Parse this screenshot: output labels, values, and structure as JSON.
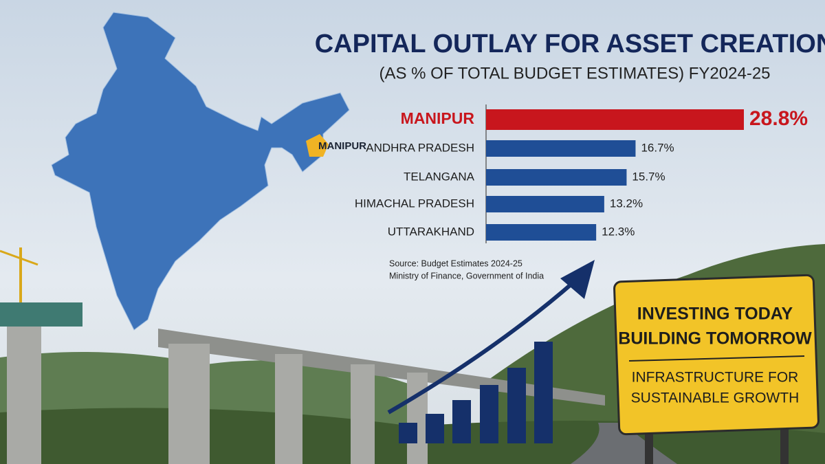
{
  "chart_data": {
    "type": "bar",
    "orientation": "horizontal",
    "title": "CAPITAL OUTLAY FOR ASSET CREATION",
    "subtitle": "(AS % OF TOTAL BUDGET ESTIMATES) FY2024-25",
    "categories": [
      "MANIPUR",
      "ANDHRA PRADESH",
      "TELANGANA",
      "HIMACHAL PRADESH",
      "UTTARAKHAND"
    ],
    "values": [
      28.8,
      16.7,
      15.7,
      13.2,
      12.3
    ],
    "value_labels": [
      "28.8%",
      "16.7%",
      "15.7%",
      "13.2%",
      "12.3%"
    ],
    "colors": [
      "#c8161d",
      "#1f4e96",
      "#1f4e96",
      "#1f4e96",
      "#1f4e96"
    ],
    "source": [
      "Source: Budget Estimates 2024-25",
      "Ministry of Finance, Government of India"
    ]
  },
  "map_label": "MANIPUR",
  "sign": {
    "headline": [
      "INVESTING TODAY",
      "BUILDING TOMORROW"
    ],
    "subline": [
      "INFRASTRUCTURE FOR",
      "SUSTAINABLE GROWTH"
    ]
  }
}
